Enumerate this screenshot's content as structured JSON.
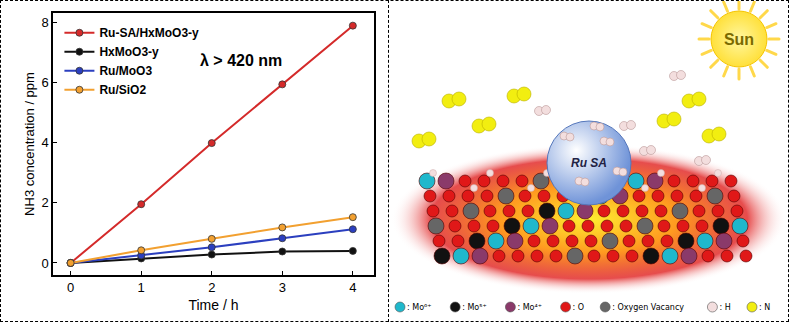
{
  "chart_data": {
    "type": "line",
    "x_label": "Time / h",
    "y_label": "NH3 concentration / ppm",
    "annotations": [
      "λ > 420 nm"
    ],
    "x": [
      0,
      1,
      2,
      3,
      4
    ],
    "xlim": [
      -0.25,
      4.3
    ],
    "xticks": [
      0,
      1,
      2,
      3,
      4
    ],
    "ylim": [
      -0.4,
      8.3
    ],
    "yticks": [
      0,
      2,
      4,
      6,
      8
    ],
    "grid": false,
    "legend": "upper left",
    "marker": "circle",
    "line_style": "solid",
    "series": [
      {
        "name": "Ru-SA/HxMoO3-y",
        "color": "#d42a2a",
        "values": [
          0,
          1.95,
          3.98,
          5.93,
          7.88
        ]
      },
      {
        "name": "HxMoO3-y",
        "color": "#111111",
        "values": [
          0,
          0.15,
          0.28,
          0.38,
          0.4
        ]
      },
      {
        "name": "Ru/MoO3",
        "color": "#2b3fbf",
        "values": [
          0,
          0.25,
          0.52,
          0.82,
          1.12
        ]
      },
      {
        "name": "Ru/SiO2",
        "color": "#f2a030",
        "values": [
          0,
          0.42,
          0.8,
          1.18,
          1.52
        ]
      }
    ]
  },
  "diagram": {
    "sun": "Sun",
    "cluster": "Ru SA",
    "legend": [
      {
        "label": ": Mo⁶⁺",
        "color": "#1fb8cc"
      },
      {
        "label": ": Mo⁵⁺",
        "color": "#111111"
      },
      {
        "label": ": Mo⁴⁺",
        "color": "#8a3a6a"
      },
      {
        "label": ": O",
        "color": "#e01818"
      },
      {
        "label": ": Oxygen Vacancy",
        "color": "#666666"
      },
      {
        "label": ": H",
        "color": "#f3dede"
      },
      {
        "label": ": N",
        "color": "#f2ee10"
      }
    ]
  }
}
